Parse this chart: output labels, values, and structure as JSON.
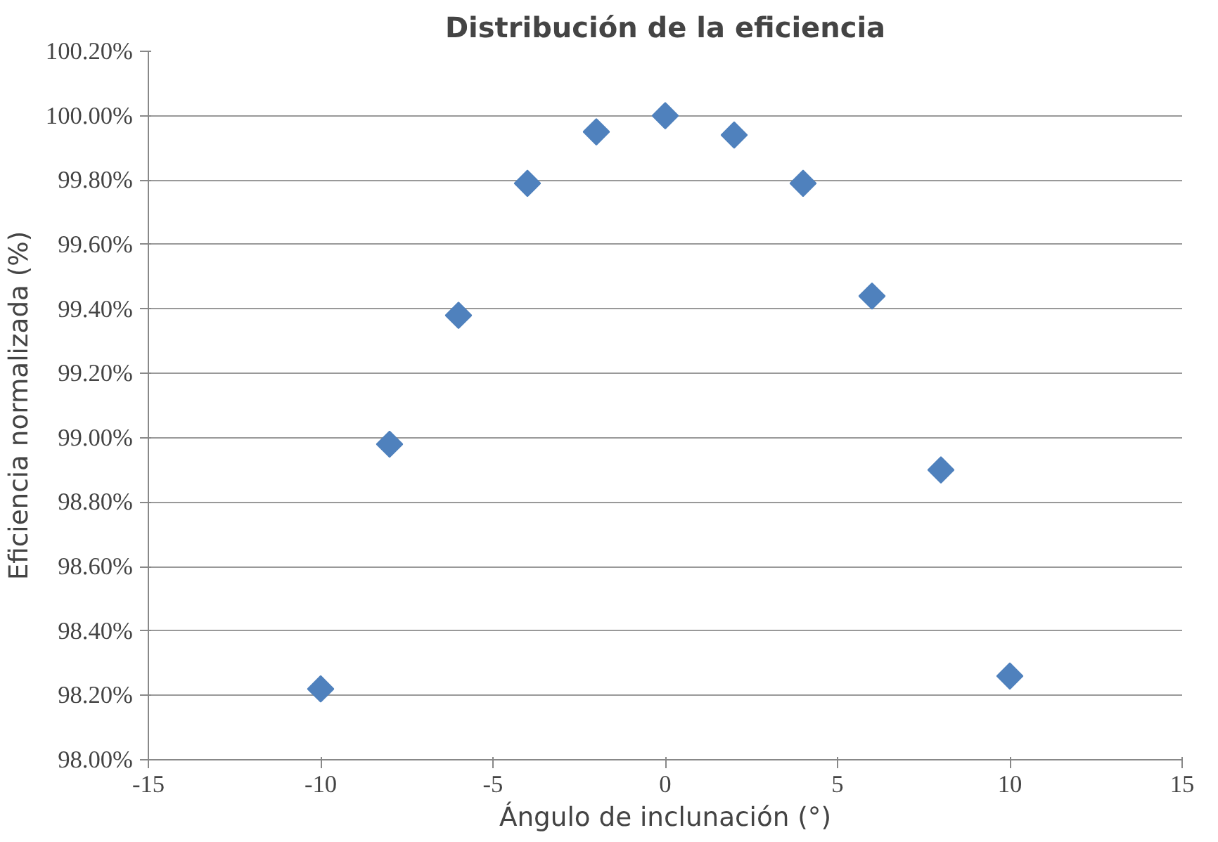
{
  "chart_data": {
    "type": "scatter",
    "title": "Distribución de la eficiencia",
    "xlabel": "Ángulo de inclunación (°)",
    "ylabel": "Eficiencia normalizada (%)",
    "x": [
      -10,
      -8,
      -6,
      -4,
      -2,
      0,
      2,
      4,
      6,
      8,
      10
    ],
    "series": [
      {
        "color": "#4f81bd",
        "values": [
          98.22,
          98.98,
          99.38,
          99.79,
          99.95,
          100.0,
          99.94,
          99.79,
          99.44,
          98.9,
          98.26
        ]
      }
    ],
    "marker": "diamond",
    "grid": "y",
    "xlim": [
      -15,
      15
    ],
    "xticks": [
      -15,
      -10,
      -5,
      0,
      5,
      10,
      15
    ],
    "ylim": [
      98.0,
      100.2
    ],
    "yticks": [
      {
        "value": 98.0,
        "label": "98.00%"
      },
      {
        "value": 98.2,
        "label": "98.20%"
      },
      {
        "value": 98.4,
        "label": "98.40%"
      },
      {
        "value": 98.6,
        "label": "98.60%"
      },
      {
        "value": 98.8,
        "label": "98.80%"
      },
      {
        "value": 99.0,
        "label": "99.00%"
      },
      {
        "value": 99.2,
        "label": "99.20%"
      },
      {
        "value": 99.4,
        "label": "99.40%"
      },
      {
        "value": 99.6,
        "label": "99.60%"
      },
      {
        "value": 99.8,
        "label": "99.80%"
      },
      {
        "value": 100.0,
        "label": "100.00%"
      },
      {
        "value": 100.2,
        "label": "100.20%"
      }
    ]
  }
}
